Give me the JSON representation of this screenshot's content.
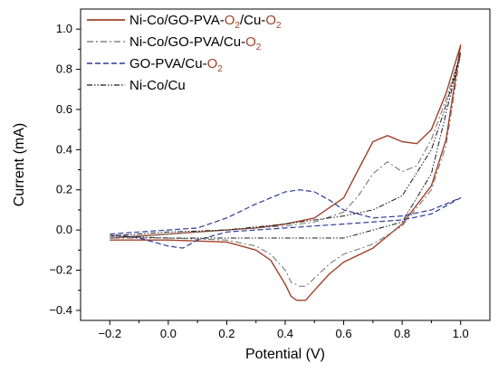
{
  "chart_data": {
    "type": "line",
    "title": "",
    "xlabel": "Potential (V)",
    "ylabel": "Current (mA)",
    "xlim": [
      -0.3,
      1.1
    ],
    "ylim": [
      -0.45,
      1.1
    ],
    "x_ticks": [
      -0.2,
      0.0,
      0.2,
      0.4,
      0.6,
      0.8,
      1.0
    ],
    "x_tick_labels": [
      "−0.2",
      "0.0",
      "0.2",
      "0.4",
      "0.6",
      "0.8",
      "1.0"
    ],
    "y_ticks": [
      -0.4,
      -0.2,
      0.0,
      0.2,
      0.4,
      0.6,
      0.8,
      1.0
    ],
    "y_tick_labels": [
      "−0.4",
      "−0.2",
      "0.0",
      "0.2",
      "0.4",
      "0.6",
      "0.8",
      "1.0"
    ],
    "grid": false,
    "legend_position": "top-left",
    "series": [
      {
        "name": "Ni-Co/GO-PVA-O2/Cu-O2",
        "legend_parts": [
          {
            "text": "Ni-Co/GO-PVA-",
            "color": "#000000"
          },
          {
            "text": "O",
            "color": "#a0422a"
          },
          {
            "text": "2",
            "color": "#a0422a",
            "sub": true
          },
          {
            "text": "/Cu-",
            "color": "#000000"
          },
          {
            "text": "O",
            "color": "#a0422a"
          },
          {
            "text": "2",
            "color": "#a0422a",
            "sub": true
          }
        ],
        "color": "#a0422a",
        "style": "solid",
        "x": [
          -0.2,
          0.0,
          0.2,
          0.3,
          0.4,
          0.5,
          0.6,
          0.65,
          0.7,
          0.75,
          0.8,
          0.85,
          0.9,
          0.95,
          1.0,
          0.95,
          0.9,
          0.8,
          0.7,
          0.6,
          0.55,
          0.5,
          0.47,
          0.44,
          0.42,
          0.4,
          0.35,
          0.3,
          0.2,
          0.0,
          -0.2
        ],
        "y": [
          -0.04,
          -0.02,
          0.0,
          0.01,
          0.03,
          0.06,
          0.16,
          0.3,
          0.44,
          0.47,
          0.44,
          0.43,
          0.5,
          0.68,
          0.92,
          0.45,
          0.22,
          0.03,
          -0.09,
          -0.16,
          -0.22,
          -0.3,
          -0.35,
          -0.35,
          -0.33,
          -0.27,
          -0.15,
          -0.1,
          -0.06,
          -0.05,
          -0.05
        ]
      },
      {
        "name": "Ni-Co/GO-PVA/Cu-O2",
        "legend_parts": [
          {
            "text": "Ni-Co/GO-PVA/Cu-",
            "color": "#000000"
          },
          {
            "text": "O",
            "color": "#a0422a"
          },
          {
            "text": "2",
            "color": "#a0422a",
            "sub": true
          }
        ],
        "color": "#6e6e6e",
        "style": "dashdot",
        "x": [
          -0.2,
          0.0,
          0.2,
          0.3,
          0.4,
          0.5,
          0.6,
          0.65,
          0.7,
          0.75,
          0.8,
          0.85,
          0.9,
          0.95,
          1.0,
          0.95,
          0.9,
          0.8,
          0.7,
          0.6,
          0.55,
          0.5,
          0.47,
          0.45,
          0.42,
          0.4,
          0.35,
          0.3,
          0.2,
          0.0,
          -0.2
        ],
        "y": [
          -0.04,
          -0.02,
          0.0,
          0.01,
          0.02,
          0.04,
          0.09,
          0.17,
          0.28,
          0.34,
          0.29,
          0.32,
          0.45,
          0.65,
          0.88,
          0.42,
          0.2,
          0.02,
          -0.07,
          -0.12,
          -0.17,
          -0.24,
          -0.28,
          -0.28,
          -0.26,
          -0.2,
          -0.12,
          -0.08,
          -0.05,
          -0.04,
          -0.04
        ]
      },
      {
        "name": "GO-PVA/Cu-O2",
        "legend_parts": [
          {
            "text": "GO-PVA/Cu-",
            "color": "#000000"
          },
          {
            "text": "O",
            "color": "#a0422a"
          },
          {
            "text": "2",
            "color": "#a0422a",
            "sub": true
          }
        ],
        "color": "#2e3a9a",
        "style": "dashed",
        "x": [
          -0.2,
          -0.1,
          0.0,
          0.1,
          0.2,
          0.3,
          0.4,
          0.45,
          0.5,
          0.55,
          0.6,
          0.7,
          0.8,
          0.9,
          1.0,
          0.9,
          0.8,
          0.6,
          0.4,
          0.2,
          0.1,
          0.05,
          0.0,
          -0.1,
          -0.2
        ],
        "y": [
          -0.02,
          -0.01,
          0.0,
          0.01,
          0.06,
          0.13,
          0.19,
          0.2,
          0.19,
          0.15,
          0.1,
          0.06,
          0.07,
          0.1,
          0.16,
          0.08,
          0.05,
          0.03,
          0.01,
          -0.01,
          -0.05,
          -0.09,
          -0.08,
          -0.04,
          -0.02
        ]
      },
      {
        "name": "Ni-Co/Cu",
        "legend_parts": [
          {
            "text": "Ni-Co/Cu",
            "color": "#000000"
          }
        ],
        "color": "#1a1a1a",
        "style": "dashdotdot",
        "x": [
          -0.2,
          0.0,
          0.2,
          0.4,
          0.6,
          0.7,
          0.8,
          0.9,
          0.95,
          1.0,
          0.9,
          0.8,
          0.6,
          0.4,
          0.2,
          0.0,
          -0.2
        ],
        "y": [
          -0.03,
          -0.01,
          0.0,
          0.03,
          0.07,
          0.1,
          0.17,
          0.4,
          0.62,
          0.88,
          0.28,
          0.04,
          -0.04,
          -0.04,
          -0.04,
          -0.04,
          -0.03
        ]
      }
    ]
  }
}
